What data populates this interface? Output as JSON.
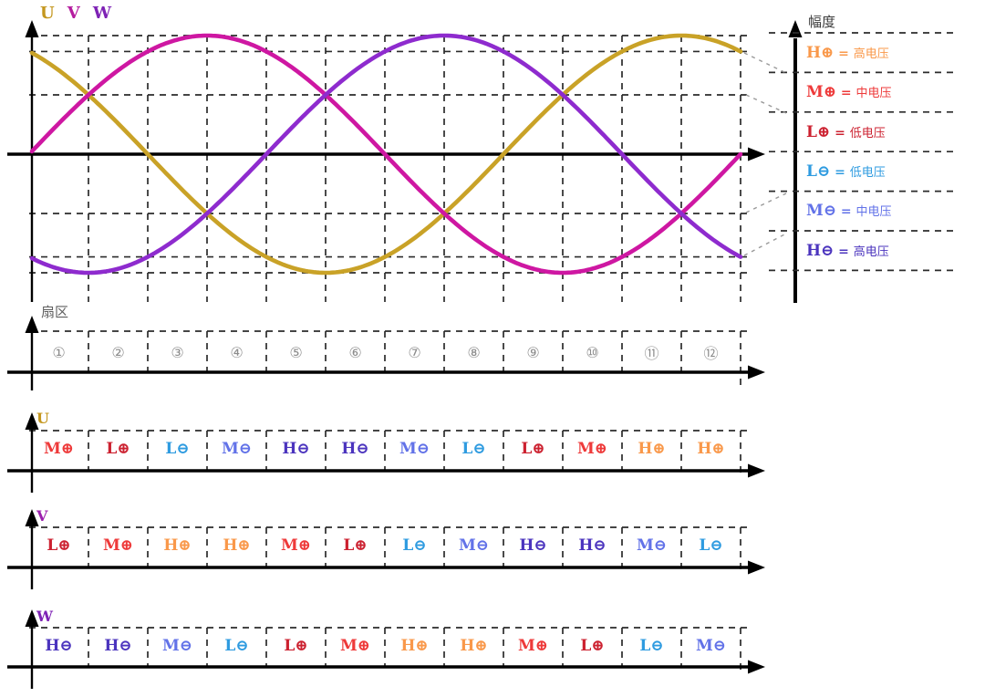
{
  "title": {
    "phases": [
      {
        "text": "U",
        "color": "#C4971F"
      },
      {
        "text": "V",
        "color": "#B51D9F"
      },
      {
        "text": "W",
        "color": "#7E22B5"
      }
    ]
  },
  "chart_data": {
    "type": "line",
    "x_axis": {
      "unit": "sector",
      "sectors": 12,
      "electrical_degrees": [
        0,
        360
      ]
    },
    "y_axis": {
      "label": "幅度",
      "normalized_range": [
        -1,
        1
      ]
    },
    "grid_levels": [
      1,
      0.866,
      0.5,
      -0.5,
      -0.866,
      -1
    ],
    "series": [
      {
        "name": "U",
        "phase_deg": 120,
        "amplitude": 1,
        "color": "#C9A227"
      },
      {
        "name": "V",
        "phase_deg": 0,
        "amplitude": 1,
        "color": "#CE17A2"
      },
      {
        "name": "W",
        "phase_deg": -120,
        "amplitude": 1,
        "color": "#8E2BCE"
      }
    ],
    "legend_position": "right",
    "grid": "dashed"
  },
  "legend": {
    "axis_label": "幅度",
    "separator": "=",
    "entries": [
      {
        "code": "H⊕",
        "text": "高电压",
        "color": "#F9984A"
      },
      {
        "code": "M⊕",
        "text": "中电压",
        "color": "#EE3A3A"
      },
      {
        "code": "L⊕",
        "text": "低电压",
        "color": "#CC2130"
      },
      {
        "code": "L⊖",
        "text": "低电压",
        "color": "#2E9BE0"
      },
      {
        "code": "M⊖",
        "text": "中电压",
        "color": "#6272E8"
      },
      {
        "code": "H⊖",
        "text": "高电压",
        "color": "#4B34BE"
      }
    ]
  },
  "sector_axis": {
    "label": "扇区",
    "numbers": [
      "①",
      "②",
      "③",
      "④",
      "⑤",
      "⑥",
      "⑦",
      "⑧",
      "⑨",
      "⑩",
      "⑪",
      "⑫"
    ],
    "number_color": "#8C8C8C"
  },
  "voltage_codes": {
    "H⊕": "#F9984A",
    "M⊕": "#EE3A3A",
    "L⊕": "#CC2130",
    "L⊖": "#2E9BE0",
    "M⊖": "#6272E8",
    "H⊖": "#4B34BE"
  },
  "phase_rows": [
    {
      "label": "U",
      "label_color": "#C4971F",
      "cells": [
        "M⊕",
        "L⊕",
        "L⊖",
        "M⊖",
        "H⊖",
        "H⊖",
        "M⊖",
        "L⊖",
        "L⊕",
        "M⊕",
        "H⊕",
        "H⊕"
      ]
    },
    {
      "label": "V",
      "label_color": "#9C1FAE",
      "cells": [
        "L⊕",
        "M⊕",
        "H⊕",
        "H⊕",
        "M⊕",
        "L⊕",
        "L⊖",
        "M⊖",
        "H⊖",
        "H⊖",
        "M⊖",
        "L⊖"
      ]
    },
    {
      "label": "W",
      "label_color": "#7E22B5",
      "cells": [
        "H⊖",
        "H⊖",
        "M⊖",
        "L⊖",
        "L⊕",
        "M⊕",
        "H⊕",
        "H⊕",
        "M⊕",
        "L⊕",
        "L⊖",
        "M⊖"
      ]
    }
  ]
}
